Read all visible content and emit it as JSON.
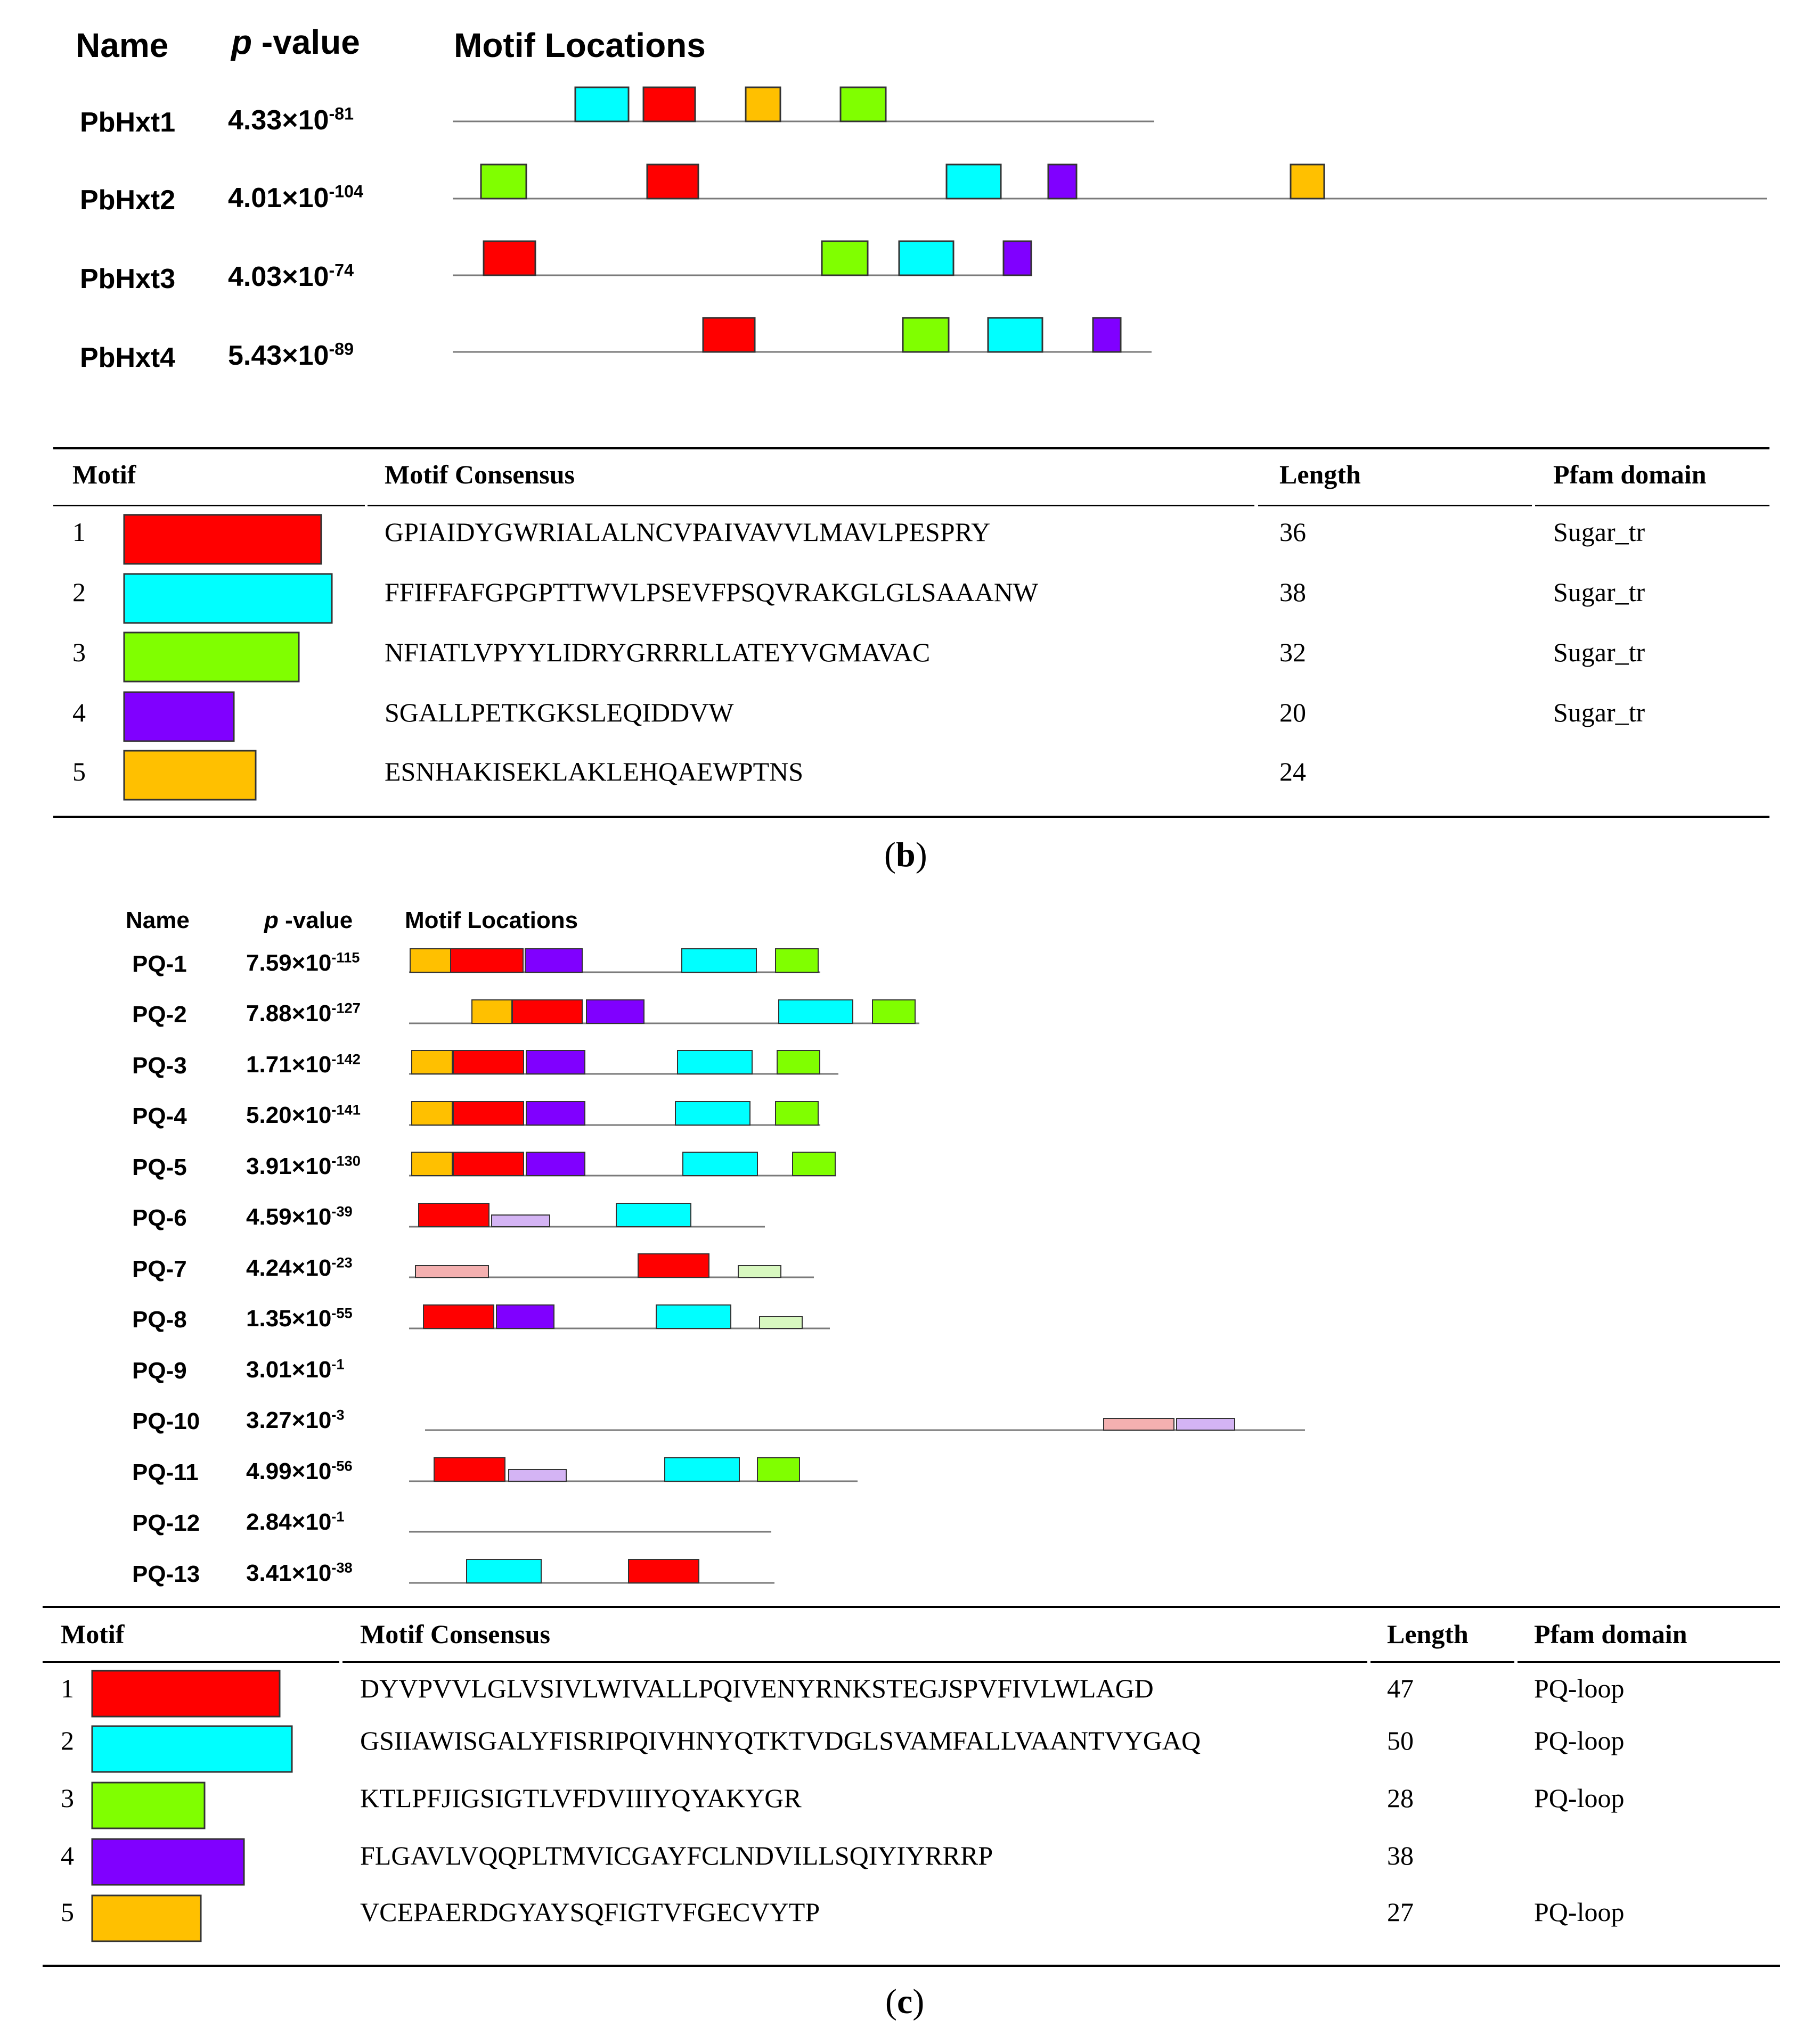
{
  "colors": {
    "1": "#ff0000",
    "2": "#00ffff",
    "3": "#80ff00",
    "4": "#8000ff",
    "5": "#ffc000",
    "pink": "#f4b0b0",
    "lavender": "#d4b4f4",
    "lightgreen": "#d8f8c0"
  },
  "panel_b": {
    "header": {
      "name": "Name",
      "p_italic": "p",
      "p_rest": " -value",
      "motif_locations": "Motif Locations"
    },
    "rows": [
      {
        "name": "PbHxt1",
        "mantissa": "4.33",
        "times": "×",
        "base": "10",
        "exp": "-81"
      },
      {
        "name": "PbHxt2",
        "mantissa": "4.01",
        "times": "×",
        "base": "10",
        "exp": "-104"
      },
      {
        "name": "PbHxt3",
        "mantissa": "4.03",
        "times": "×",
        "base": "10",
        "exp": "-74"
      },
      {
        "name": "PbHxt4",
        "mantissa": "5.43",
        "times": "×",
        "base": "10",
        "exp": "-89"
      }
    ],
    "table_header": {
      "motif": "Motif",
      "consensus": "Motif Consensus",
      "length": "Length",
      "pfam": "Pfam domain"
    },
    "motifs": [
      {
        "num": "1",
        "consensus": "GPIAIDYGWRIALALNCVPAIVAVVLMAVLPESPRY",
        "length": "36",
        "pfam": "Sugar_tr"
      },
      {
        "num": "2",
        "consensus": "FFIFFAFGPGPTTWVLPSEVFPSQVRAKGLGLSAAANW",
        "length": "38",
        "pfam": "Sugar_tr"
      },
      {
        "num": "3",
        "consensus": "NFIATLVPYYLIDRYGRRRLLATEYVGMAVAC",
        "length": "32",
        "pfam": "Sugar_tr"
      },
      {
        "num": "4",
        "consensus": "SGALLPETKGKSLEQIDDVW",
        "length": "20",
        "pfam": "Sugar_tr"
      },
      {
        "num": "5",
        "consensus": "ESNHAKISEKLAKLEHQAEWPTNS",
        "length": "24",
        "pfam": ""
      }
    ],
    "caption": {
      "open": "(",
      "letter": "b",
      "close": ")"
    }
  },
  "panel_c": {
    "header": {
      "name": "Name",
      "p_italic": "p",
      "p_rest": " -value",
      "motif_locations": "Motif Locations"
    },
    "rows": [
      {
        "name": "PQ-1",
        "mantissa": "7.59",
        "times": "×",
        "base": "10",
        "exp": "-115"
      },
      {
        "name": "PQ-2",
        "mantissa": "7.88",
        "times": "×",
        "base": "10",
        "exp": "-127"
      },
      {
        "name": "PQ-3",
        "mantissa": "1.71",
        "times": "×",
        "base": "10",
        "exp": "-142"
      },
      {
        "name": "PQ-4",
        "mantissa": "5.20",
        "times": "×",
        "base": "10",
        "exp": "-141"
      },
      {
        "name": "PQ-5",
        "mantissa": "3.91",
        "times": "×",
        "base": "10",
        "exp": "-130"
      },
      {
        "name": "PQ-6",
        "mantissa": "4.59",
        "times": "×",
        "base": "10",
        "exp": "-39"
      },
      {
        "name": "PQ-7",
        "mantissa": "4.24",
        "times": "×",
        "base": "10",
        "exp": "-23"
      },
      {
        "name": "PQ-8",
        "mantissa": "1.35",
        "times": "×",
        "base": "10",
        "exp": "-55"
      },
      {
        "name": "PQ-9",
        "mantissa": "3.01",
        "times": "×",
        "base": "10",
        "exp": "-1"
      },
      {
        "name": "PQ-10",
        "mantissa": "3.27",
        "times": "×",
        "base": "10",
        "exp": "-3"
      },
      {
        "name": "PQ-11",
        "mantissa": "4.99",
        "times": "×",
        "base": "10",
        "exp": "-56"
      },
      {
        "name": "PQ-12",
        "mantissa": "2.84",
        "times": "×",
        "base": "10",
        "exp": "-1"
      },
      {
        "name": "PQ-13",
        "mantissa": "3.41",
        "times": "×",
        "base": "10",
        "exp": "-38"
      }
    ],
    "table_header": {
      "motif": "Motif",
      "consensus": "Motif Consensus",
      "length": "Length",
      "pfam": "Pfam domain"
    },
    "motifs": [
      {
        "num": "1",
        "consensus": "DYVPVVLGLVSIVLWIVALLPQIVENYRNKSTEGJSPVFIVLWLAGD",
        "length": "47",
        "pfam": "PQ-loop"
      },
      {
        "num": "2",
        "consensus": "GSIIAWISGALYFISRIPQIVHNYQTKTVDGLSVAMFALLVAANTVYGAQ",
        "length": "50",
        "pfam": "PQ-loop"
      },
      {
        "num": "3",
        "consensus": "KTLPFJIGSIGTLVFDVIIIYQYAKYGR",
        "length": "28",
        "pfam": "PQ-loop"
      },
      {
        "num": "4",
        "consensus": "FLGAVLVQQPLTMVICGAYFCLNDVILLSQIYIYRRRP",
        "length": "38",
        "pfam": ""
      },
      {
        "num": "5",
        "consensus": "VCEPAERDGYAYSQFIGTVFGECVYTP",
        "length": "27",
        "pfam": "PQ-loop"
      }
    ],
    "caption": {
      "open": "(",
      "letter": "c",
      "close": ")"
    }
  }
}
